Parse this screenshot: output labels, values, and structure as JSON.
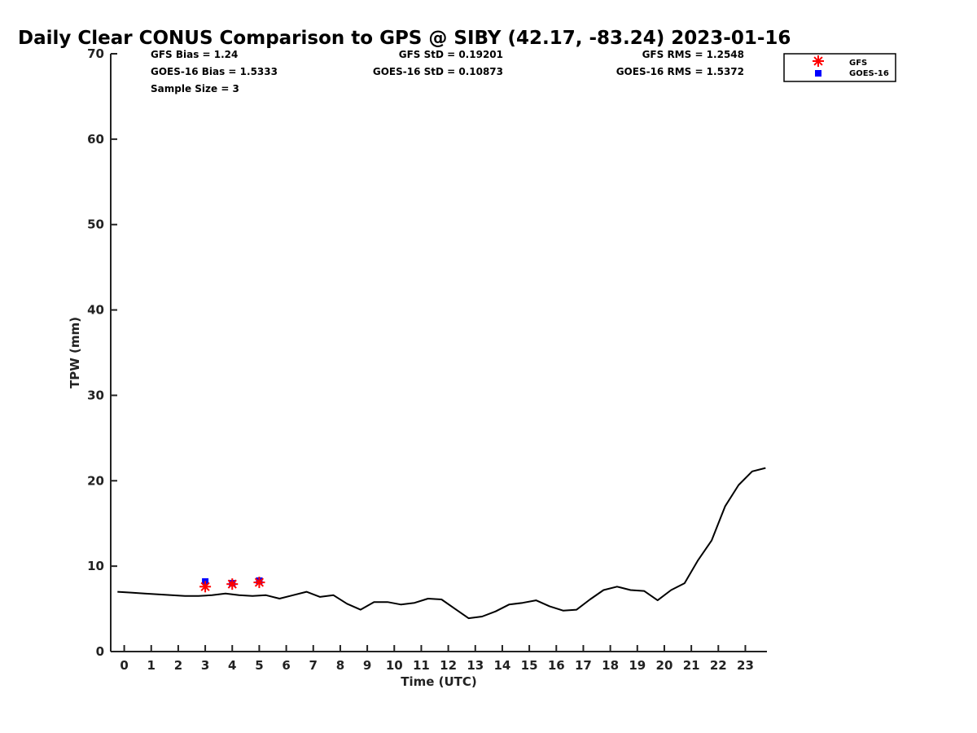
{
  "chart_data": {
    "type": "line",
    "title": "Daily Clear CONUS Comparison to GPS @ SIBY (42.17, -83.24) 2023-01-16",
    "xlabel": "Time (UTC)",
    "ylabel": "TPW (mm)",
    "xlim": [
      -0.5,
      23.8
    ],
    "ylim": [
      0,
      70
    ],
    "xticks": [
      0,
      1,
      2,
      3,
      4,
      5,
      6,
      7,
      8,
      9,
      10,
      11,
      12,
      13,
      14,
      15,
      16,
      17,
      18,
      19,
      20,
      21,
      22,
      23
    ],
    "yticks": [
      0,
      10,
      20,
      30,
      40,
      50,
      60,
      70
    ],
    "grid": false,
    "legend_position": "top-right",
    "stats": {
      "gfs_bias": "GFS Bias = 1.24",
      "goes_bias": "GOES-16 Bias = 1.5333",
      "sample_size": "Sample Size = 3",
      "gfs_std": "GFS StD = 0.19201",
      "goes_std": "GOES-16 StD = 0.10873",
      "gfs_rms": "GFS RMS = 1.2548",
      "goes_rms": "GOES-16 RMS = 1.5372"
    },
    "series": [
      {
        "type": "line",
        "color": "#000000",
        "x": [
          -0.25,
          0.25,
          0.75,
          1.25,
          1.75,
          2.25,
          2.75,
          3.25,
          3.75,
          4.25,
          4.75,
          5.25,
          5.75,
          6.25,
          6.75,
          7.25,
          7.75,
          8.25,
          8.75,
          9.25,
          9.75,
          10.25,
          10.75,
          11.25,
          11.75,
          12.25,
          12.75,
          13.25,
          13.75,
          14.25,
          14.75,
          15.25,
          15.75,
          16.25,
          16.75,
          17.25,
          17.75,
          18.25,
          18.75,
          19.25,
          19.75,
          20.25,
          20.75,
          21.25,
          21.75,
          22.25,
          22.75,
          23.25,
          23.75
        ],
        "values": [
          7.0,
          6.9,
          6.8,
          6.7,
          6.6,
          6.5,
          6.5,
          6.6,
          6.8,
          6.6,
          6.5,
          6.6,
          6.2,
          6.6,
          7.0,
          6.4,
          6.6,
          5.6,
          4.9,
          5.8,
          5.8,
          5.5,
          5.7,
          6.2,
          6.1,
          5.0,
          3.9,
          4.1,
          4.7,
          5.5,
          5.7,
          6.0,
          5.3,
          4.8,
          4.9,
          6.1,
          7.2,
          7.6,
          7.2,
          7.1,
          6.0,
          7.2,
          8.0,
          10.7,
          13.0,
          17.0,
          19.5,
          21.1,
          21.5
        ]
      },
      {
        "name": "GFS",
        "type": "scatter",
        "marker": "asterisk",
        "color": "#ff0000",
        "x": [
          3,
          4,
          5
        ],
        "values": [
          7.6,
          7.9,
          8.1
        ]
      },
      {
        "name": "GOES-16",
        "type": "scatter",
        "marker": "square",
        "color": "#0000ff",
        "x": [
          3,
          4,
          5
        ],
        "values": [
          8.2,
          8.0,
          8.3
        ]
      }
    ]
  }
}
